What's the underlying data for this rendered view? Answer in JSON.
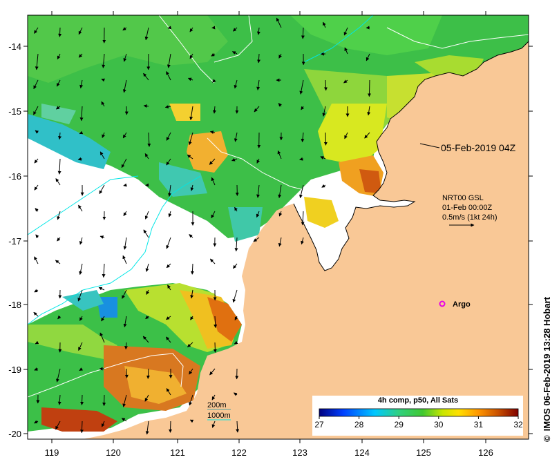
{
  "map": {
    "date_label": "05-Feb-2019 04Z",
    "current_source": "NRT00 GSL",
    "current_time": "01-Feb 00:00Z",
    "current_scale": "0.5m/s (1kt 24h)",
    "argo_label": "Argo",
    "contour_200": "200m",
    "contour_1000": "1000m",
    "credit": "IMOS 06-Feb-2019 13:28 Hobart",
    "credit_symbol": "©"
  },
  "axes": {
    "lon_ticks": [
      "119",
      "120",
      "121",
      "122",
      "123",
      "124",
      "125",
      "126"
    ],
    "lat_ticks": [
      "-14",
      "-15",
      "-16",
      "-17",
      "-18",
      "-19",
      "-20"
    ]
  },
  "colorbar": {
    "title": "4h comp, p50, All Sats",
    "tick_labels": [
      "27",
      "28",
      "29",
      "30",
      "31",
      "32"
    ],
    "range": [
      27,
      32
    ],
    "colors": [
      "#00007f",
      "#0050ff",
      "#00c8ff",
      "#2fd07a",
      "#3cc83c",
      "#b4e600",
      "#ffe600",
      "#ff9600",
      "#d25a00",
      "#7f0000"
    ]
  },
  "colors": {
    "land": "#f9c896",
    "contour_200": "#50a0a0",
    "contour_1000": "#00e6e6",
    "argo": "#e600e6"
  }
}
